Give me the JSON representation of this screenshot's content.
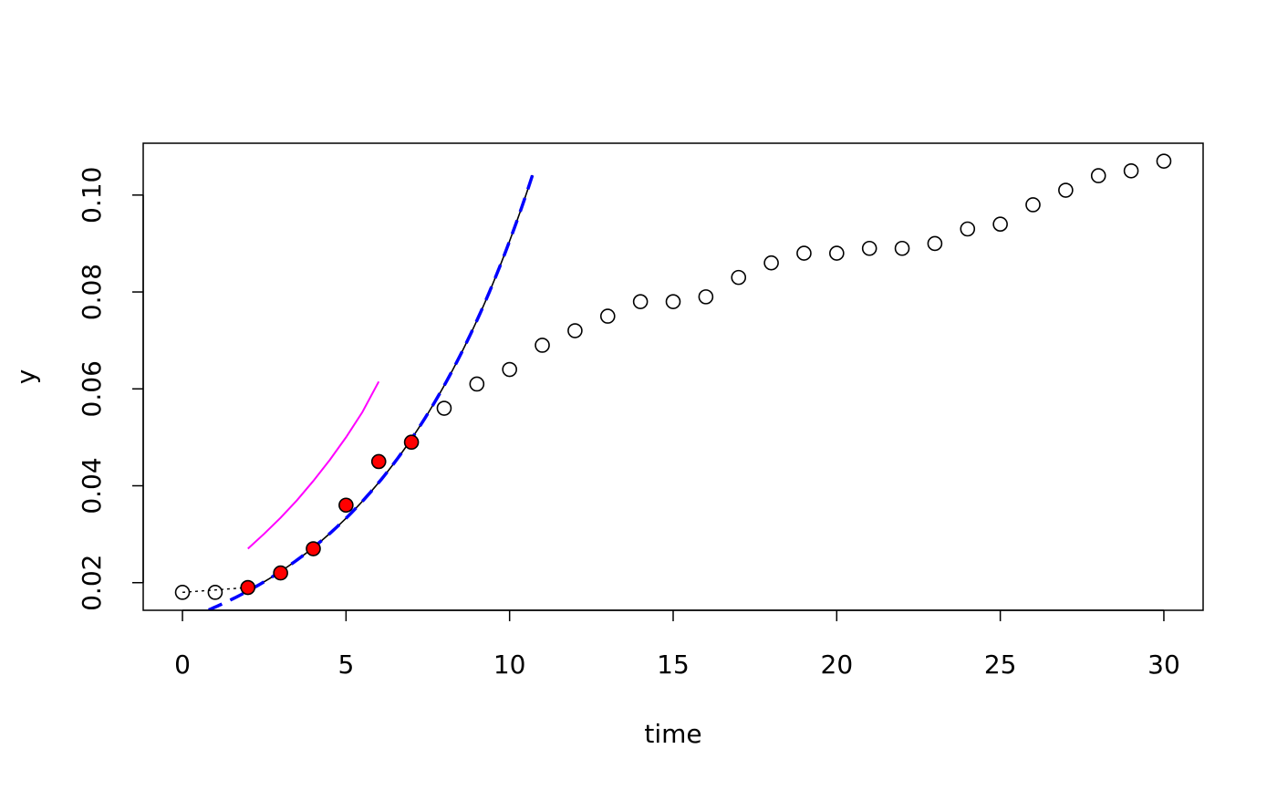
{
  "chart_data": {
    "type": "scatter",
    "title": "",
    "xlabel": "time",
    "ylabel": "y",
    "xlim": [
      -1.2,
      31.2
    ],
    "ylim": [
      0.0143,
      0.1107
    ],
    "grid": false,
    "legend": "none",
    "x_ticks": [
      0,
      5,
      10,
      15,
      20,
      25,
      30
    ],
    "y_ticks": [
      0.02,
      0.04,
      0.06,
      0.08,
      0.1
    ],
    "y_tick_labels": [
      "0.02",
      "0.04",
      "0.06",
      "0.08",
      "0.10"
    ],
    "points": {
      "x": [
        0,
        1,
        2,
        3,
        4,
        5,
        6,
        7,
        8,
        9,
        10,
        11,
        12,
        13,
        14,
        15,
        16,
        17,
        18,
        19,
        20,
        21,
        22,
        23,
        24,
        25,
        26,
        27,
        28,
        29,
        30
      ],
      "y": [
        0.018,
        0.018,
        0.019,
        0.022,
        0.027,
        0.036,
        0.045,
        0.049,
        0.056,
        0.061,
        0.064,
        0.069,
        0.072,
        0.075,
        0.078,
        0.078,
        0.079,
        0.083,
        0.086,
        0.088,
        0.088,
        0.089,
        0.089,
        0.09,
        0.093,
        0.094,
        0.098,
        0.101,
        0.104,
        0.105,
        0.107
      ],
      "highlight_x": [
        2,
        3,
        4,
        5,
        6,
        7
      ],
      "open_color": "#000000",
      "highlight_color": "#ff0000"
    },
    "lag_line": {
      "x": [
        0,
        2
      ],
      "y": [
        0.018,
        0.019
      ],
      "color": "#000000"
    },
    "fit_curve": {
      "x_start": 1.6,
      "x_end": 10.7,
      "y0": 0.01225,
      "rate": 0.2,
      "color": "#000000"
    },
    "fit_curve_dashed": {
      "x_start": 0.8,
      "x_end": 10.7,
      "y0": 0.01225,
      "rate": 0.2,
      "color": "#0000ff"
    },
    "magenta_curve": {
      "x": [
        2,
        2.5,
        3,
        3.5,
        4,
        4.5,
        5,
        5.5,
        6
      ],
      "y": [
        0.027,
        0.0301,
        0.0334,
        0.037,
        0.041,
        0.0453,
        0.05,
        0.0552,
        0.0615
      ],
      "color": "#ff00ff"
    }
  }
}
